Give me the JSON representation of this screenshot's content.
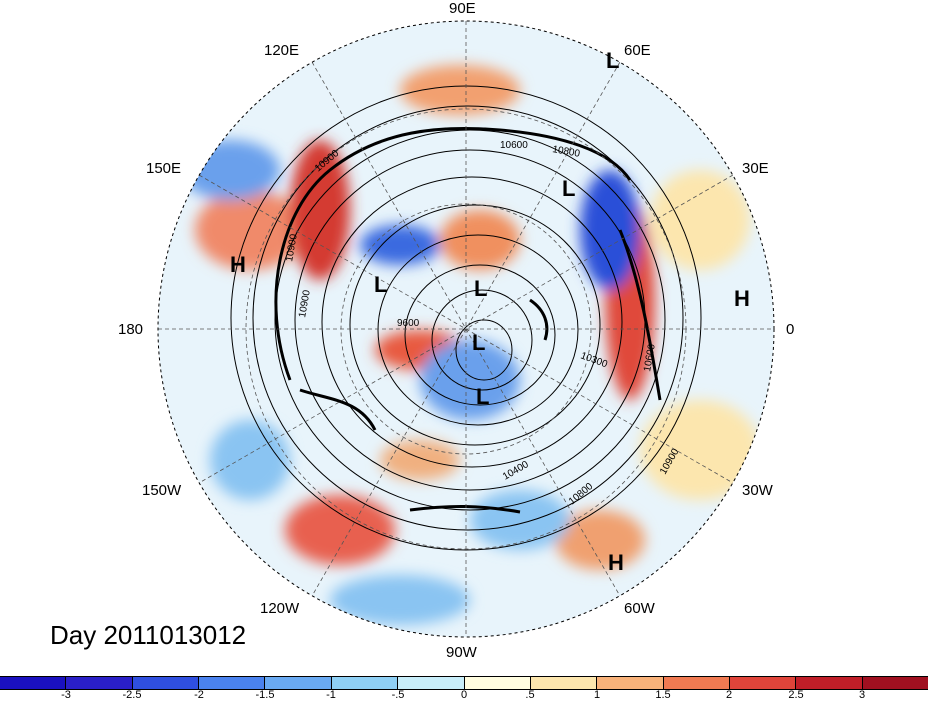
{
  "title": "Day 2011013012",
  "longitude_labels": [
    "90E",
    "60E",
    "30E",
    "0",
    "30W",
    "60W",
    "90W",
    "120W",
    "150W",
    "180",
    "150E",
    "120E"
  ],
  "contour_labels": [
    "10900",
    "10800",
    "10600",
    "10900",
    "10900",
    "9600",
    "10300",
    "10600",
    "10400",
    "10800",
    "10900"
  ],
  "systems": [
    "L",
    "L",
    "L",
    "L",
    "L",
    "L",
    "H",
    "H",
    "H"
  ],
  "colorbar": {
    "colors": [
      "#2a1fc8",
      "#2f4fe0",
      "#4a82ee",
      "#6aaaf2",
      "#8fd0f5",
      "#c8eefa",
      "#fffde0",
      "#fce6ae",
      "#f8b27a",
      "#f07a52",
      "#e0443a",
      "#c01e28",
      "#a01020"
    ],
    "ticks": [
      "-3",
      "-2.5",
      "-2",
      "-1.5",
      "-1",
      "-.5",
      "0",
      ".5",
      "1",
      "1.5",
      "2",
      "2.5",
      "3"
    ]
  }
}
